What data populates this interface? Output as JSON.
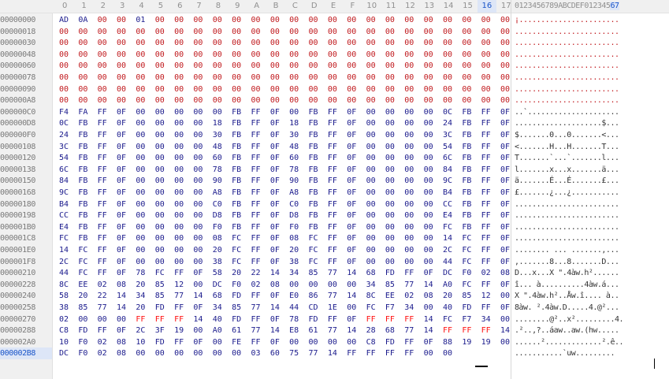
{
  "columns": [
    "0",
    "1",
    "2",
    "3",
    "4",
    "5",
    "6",
    "7",
    "8",
    "9",
    "A",
    "B",
    "C",
    "D",
    "E",
    "F",
    "10",
    "11",
    "12",
    "13",
    "14",
    "15",
    "16",
    "17"
  ],
  "active_column": 22,
  "ascii_header": {
    "before": "0123456789ABCDEF012345",
    "highlight": "67"
  },
  "active_row": 29,
  "rows": [
    {
      "offset": "00000000",
      "hex": "AD 0A 00 00 01 00 00 00 00 00 00 00 00 00 00 00 00 00 00 00 00 00 00 00",
      "ascii": "¡......................."
    },
    {
      "offset": "00000018",
      "hex": "00 00 00 00 00 00 00 00 00 00 00 00 00 00 00 00 00 00 00 00 00 00 00 00",
      "ascii": "........................"
    },
    {
      "offset": "00000030",
      "hex": "00 00 00 00 00 00 00 00 00 00 00 00 00 00 00 00 00 00 00 00 00 00 00 00",
      "ascii": "........................"
    },
    {
      "offset": "00000048",
      "hex": "00 00 00 00 00 00 00 00 00 00 00 00 00 00 00 00 00 00 00 00 00 00 00 00",
      "ascii": "........................"
    },
    {
      "offset": "00000060",
      "hex": "00 00 00 00 00 00 00 00 00 00 00 00 00 00 00 00 00 00 00 00 00 00 00 00",
      "ascii": "........................"
    },
    {
      "offset": "00000078",
      "hex": "00 00 00 00 00 00 00 00 00 00 00 00 00 00 00 00 00 00 00 00 00 00 00 00",
      "ascii": "........................"
    },
    {
      "offset": "00000090",
      "hex": "00 00 00 00 00 00 00 00 00 00 00 00 00 00 00 00 00 00 00 00 00 00 00 00",
      "ascii": "........................"
    },
    {
      "offset": "000000A8",
      "hex": "00 00 00 00 00 00 00 00 00 00 00 00 00 00 00 00 00 00 00 00 00 00 00 00",
      "ascii": "........................"
    },
    {
      "offset": "000000C0",
      "hex": "F4 FA FF 0F 00 00 00 00 00 FB FF 0F 00 FB FF 0F 00 00 00 00 0C FB FF 0F",
      "ascii": "..`....................."
    },
    {
      "offset": "000000D8",
      "hex": "0C FB FF 0F 00 00 00 00 18 FB FF 0F 18 FB FF 0F 00 00 00 00 24 FB FF 0F",
      "ascii": "....................$..."
    },
    {
      "offset": "000000F0",
      "hex": "24 FB FF 0F 00 00 00 00 30 FB FF 0F 30 FB FF 0F 00 00 00 00 3C FB FF 0F",
      "ascii": "$.......0...0.......<..."
    },
    {
      "offset": "00000108",
      "hex": "3C FB FF 0F 00 00 00 00 48 FB FF 0F 48 FB FF 0F 00 00 00 00 54 FB FF 0F",
      "ascii": "<.......H...H.......T..."
    },
    {
      "offset": "00000120",
      "hex": "54 FB FF 0F 00 00 00 00 60 FB FF 0F 60 FB FF 0F 00 00 00 00 6C FB FF 0F",
      "ascii": "T.......`...`.......l..."
    },
    {
      "offset": "00000138",
      "hex": "6C FB FF 0F 00 00 00 00 78 FB FF 0F 78 FB FF 0F 00 00 00 00 84 FB FF 0F",
      "ascii": "l.......x...x.......ä..."
    },
    {
      "offset": "00000150",
      "hex": "84 FB FF 0F 00 00 00 00 90 FB FF 0F 90 FB FF 0F 00 00 00 00 9C FB FF 0F",
      "ascii": "ä.......É...É.......£..."
    },
    {
      "offset": "00000168",
      "hex": "9C FB FF 0F 00 00 00 00 A8 FB FF 0F A8 FB FF 0F 00 00 00 00 B4 FB FF 0F",
      "ascii": "£.......¿...¿..........."
    },
    {
      "offset": "00000180",
      "hex": "B4 FB FF 0F 00 00 00 00 C0 FB FF 0F C0 FB FF 0F 00 00 00 00 CC FB FF 0F",
      "ascii": "........................"
    },
    {
      "offset": "00000198",
      "hex": "CC FB FF 0F 00 00 00 00 D8 FB FF 0F D8 FB FF 0F 00 00 00 00 E4 FB FF 0F",
      "ascii": "........................"
    },
    {
      "offset": "000001B0",
      "hex": "E4 FB FF 0F 00 00 00 00 F0 FB FF 0F F0 FB FF 0F 00 00 00 00 FC FB FF 0F",
      "ascii": "........................"
    },
    {
      "offset": "000001C8",
      "hex": "FC FB FF 0F 00 00 00 00 08 FC FF 0F 08 FC FF 0F 00 00 00 00 14 FC FF 0F",
      "ascii": "........................"
    },
    {
      "offset": "000001E0",
      "hex": "14 FC FF 0F 00 00 00 00 20 FC FF 0F 20 FC FF 0F 00 00 00 00 2C FC FF 0F",
      "ascii": "........ ... .......,..."
    },
    {
      "offset": "000001F8",
      "hex": "2C FC FF 0F 00 00 00 00 38 FC FF 0F 38 FC FF 0F 00 00 00 00 44 FC FF 0F",
      "ascii": ",.......8...8.......D..."
    },
    {
      "offset": "00000210",
      "hex": "44 FC FF 0F 78 FC FF 0F 58 20 22 14 34 85 77 14 68 FD FF 0F DC F0 02 08",
      "ascii": "D...x...X \".4àw.h²......"
    },
    {
      "offset": "00000228",
      "hex": "8C EE 02 08 20 85 12 00 DC F0 02 08 00 00 00 00 34 85 77 14 A0 FC FF 0F",
      "ascii": "î... à..........4àw.á..."
    },
    {
      "offset": "00000240",
      "hex": "58 20 22 14 34 85 77 14 68 FD FF 0F E0 86 77 14 8C EE 02 08 20 85 12 00",
      "ascii": "X \".4àw.h²..Åw.î.... à.."
    },
    {
      "offset": "00000258",
      "hex": "38 85 77 14 20 FD FF 0F 34 85 77 14 44 CD 1E 00 FC F7 34 00 40 FD FF 0F",
      "ascii": "8àw. ².4àw.D.....4.@²..."
    },
    {
      "offset": "00000270",
      "hex": "02 00 00 00 FF FF FF 14 40 FD FF 0F 78 FD FF 0F FF FF FF 14 FC F7 34 00",
      "ascii": "........@²..x².........4."
    },
    {
      "offset": "00000288",
      "hex": "C8 FD FF 0F 2C 3F 19 00 A0 61 77 14 E8 61 77 14 28 68 77 14 FF FF FF 14",
      "ascii": ".²..,?..áaw..aw.(hw....."
    },
    {
      "offset": "000002A0",
      "hex": "10 F0 02 08 10 FD FF 0F 00 FE FF 0F 00 00 00 00 C8 FD FF 0F 88 19 19 00",
      "ascii": "......².............².ê.."
    },
    {
      "offset": "000002B8",
      "hex": "DC F0 02 08 00 00 00 00 00 00 03 60 75 77 14 FF FF FF FF 00 00",
      "ascii": "...........`uw........."
    }
  ]
}
